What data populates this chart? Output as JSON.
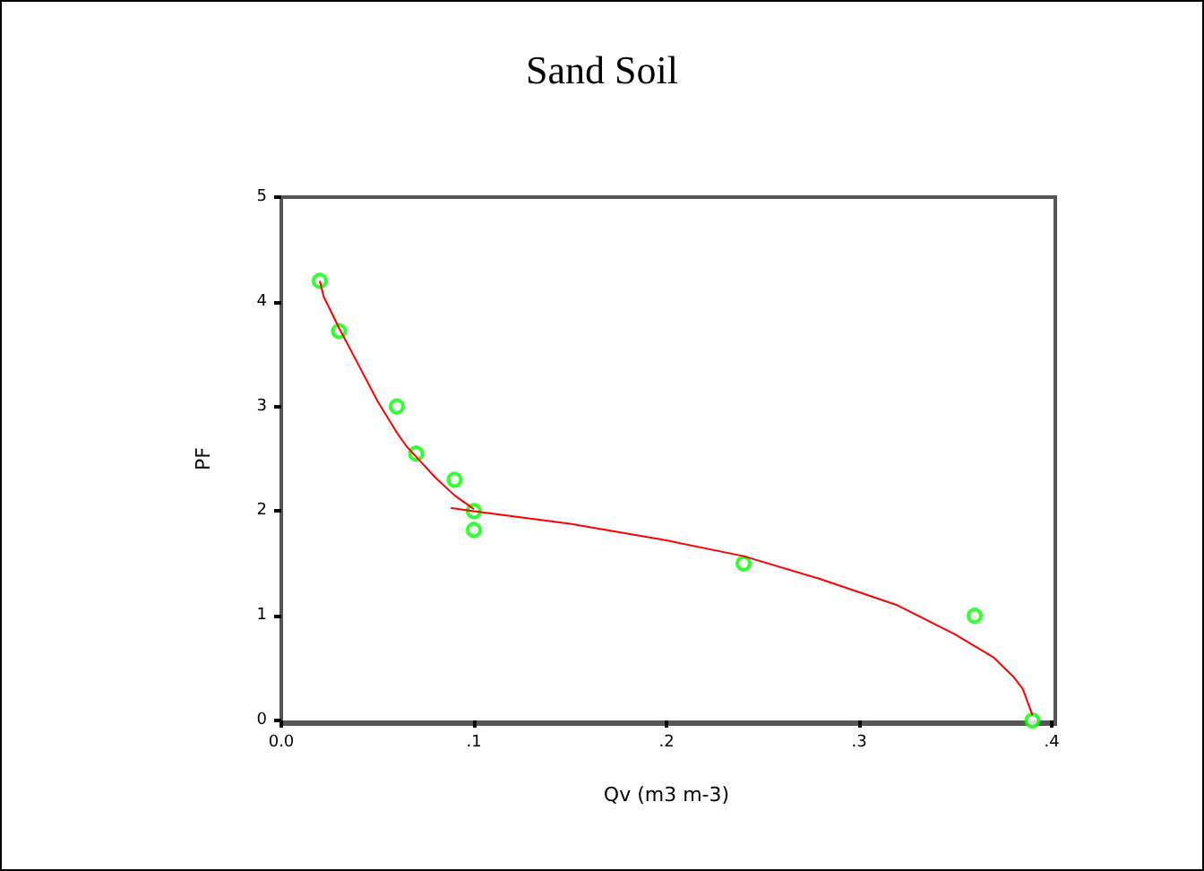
{
  "chart_data": {
    "type": "scatter",
    "title": "Sand Soil",
    "xlabel": "Qv (m3 m-3)",
    "ylabel": "PF",
    "xlim": [
      0,
      0.4
    ],
    "xticks": [
      {
        "value": 0,
        "label": "0.0"
      },
      {
        "value": 0.1,
        "label": ".1"
      },
      {
        "value": 0.2,
        "label": ".2"
      },
      {
        "value": 0.3,
        "label": ".3"
      },
      {
        "value": 0.4,
        "label": ".4"
      }
    ],
    "ylim": [
      0,
      5
    ],
    "yticks": [
      0,
      1,
      2,
      3,
      4,
      5
    ],
    "grid": false,
    "series": [
      {
        "marker": "circle",
        "color": "#00ff00",
        "x": [
          0.02,
          0.03,
          0.06,
          0.07,
          0.09,
          0.1,
          0.1,
          0.24,
          0.36,
          0.39
        ],
        "values": [
          4.2,
          3.72,
          3.0,
          2.55,
          2.3,
          2.0,
          1.82,
          1.5,
          1.0,
          0.0
        ]
      },
      {
        "type": "line",
        "marker": "none",
        "color": "#ff0000",
        "x": [
          0.02,
          0.022,
          0.03,
          0.04,
          0.05,
          0.06,
          0.065,
          0.07,
          0.08,
          0.09,
          0.1
        ],
        "values": [
          4.2,
          4.05,
          3.75,
          3.4,
          3.05,
          2.75,
          2.62,
          2.52,
          2.32,
          2.15,
          2.02
        ]
      },
      {
        "type": "line",
        "marker": "none",
        "color": "#ff0000",
        "x": [
          0.088,
          0.1,
          0.15,
          0.2,
          0.24,
          0.28,
          0.32,
          0.35,
          0.37,
          0.38,
          0.385,
          0.39
        ],
        "values": [
          2.03,
          2.0,
          1.88,
          1.72,
          1.57,
          1.35,
          1.1,
          0.82,
          0.6,
          0.42,
          0.3,
          0.05
        ]
      }
    ]
  }
}
